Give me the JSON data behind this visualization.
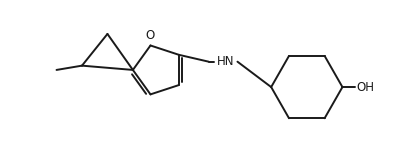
{
  "background_color": "#ffffff",
  "line_color": "#1a1a1a",
  "line_width": 1.4,
  "text_color": "#1a1a1a",
  "font_size": 8.5,
  "figsize": [
    4.1,
    1.57
  ],
  "dpi": 100,
  "xlim": [
    -0.3,
    4.5
  ],
  "ylim": [
    -0.1,
    1.7
  ]
}
